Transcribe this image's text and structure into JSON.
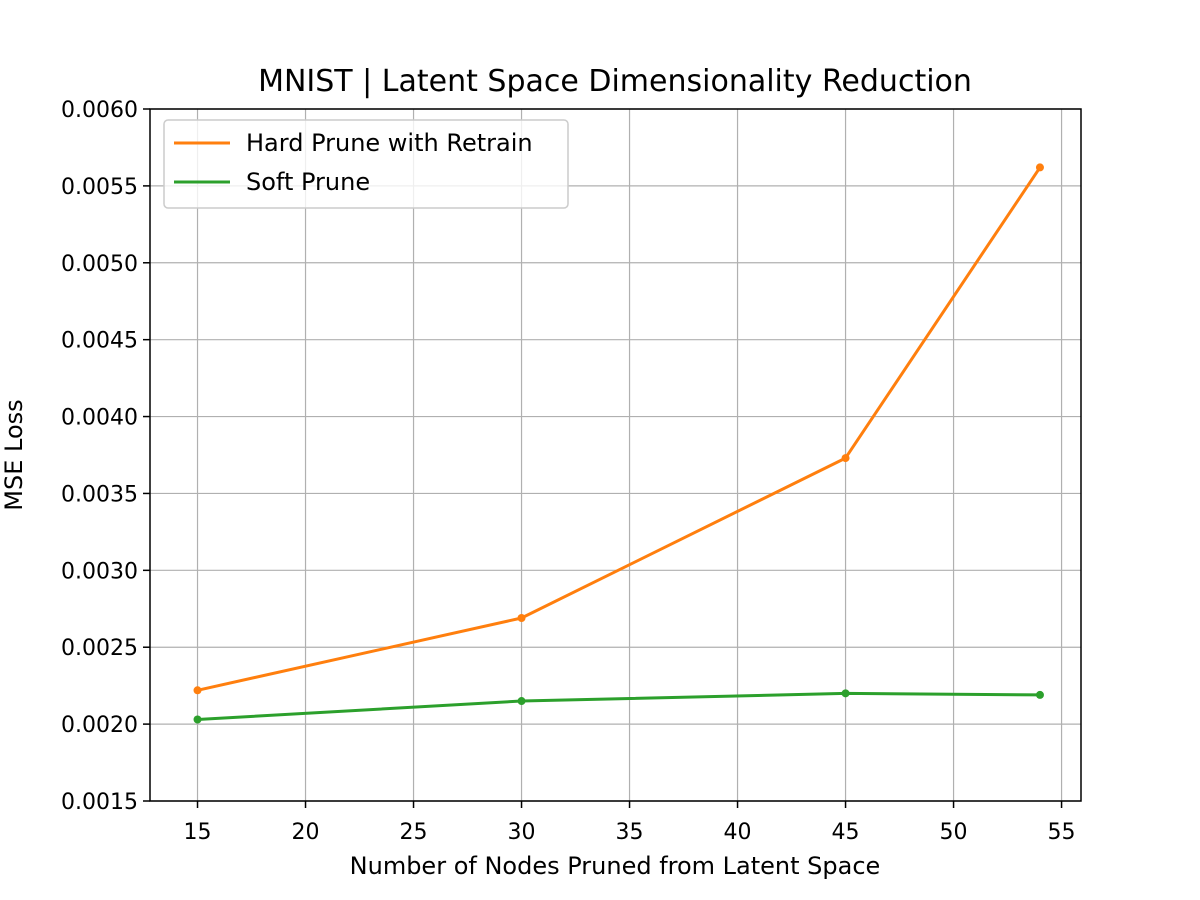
{
  "chart_data": {
    "type": "line",
    "title": "MNIST | Latent Space Dimensionality Reduction",
    "xlabel": "Number of Nodes Pruned from Latent Space",
    "ylabel": "MSE Loss",
    "xlim": [
      12.8,
      55.9
    ],
    "ylim": [
      0.0015,
      0.006
    ],
    "xticks": [
      15,
      20,
      25,
      30,
      35,
      40,
      45,
      50,
      55
    ],
    "yticks": [
      0.0015,
      0.002,
      0.0025,
      0.003,
      0.0035,
      0.004,
      0.0045,
      0.005,
      0.0055,
      0.006
    ],
    "xtick_labels": [
      "15",
      "20",
      "25",
      "30",
      "35",
      "40",
      "45",
      "50",
      "55"
    ],
    "ytick_labels": [
      "0.0015",
      "0.0020",
      "0.0025",
      "0.0030",
      "0.0035",
      "0.0040",
      "0.0045",
      "0.0050",
      "0.0055",
      "0.0060"
    ],
    "grid": true,
    "legend_position": "top-left",
    "series": [
      {
        "name": "Hard Prune with Retrain",
        "color": "#ff7f0e",
        "x": [
          15,
          30,
          45,
          54
        ],
        "y": [
          0.00222,
          0.00269,
          0.00373,
          0.00562
        ]
      },
      {
        "name": "Soft Prune",
        "color": "#2ca02c",
        "x": [
          15,
          30,
          45,
          54
        ],
        "y": [
          0.00203,
          0.00215,
          0.0022,
          0.00219
        ]
      }
    ]
  }
}
